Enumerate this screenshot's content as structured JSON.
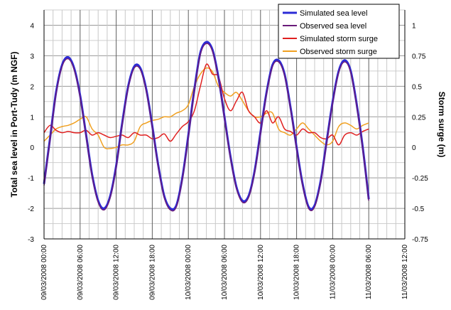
{
  "chart_data": {
    "type": "line",
    "ylabel_left": "Total sea level in Port-Tudy (m NGF)",
    "ylabel_right": "Storm surge (m)",
    "xlim_hours": [
      0,
      54
    ],
    "ylim_left": [
      -3,
      4.5
    ],
    "ylim_right": [
      -0.75,
      1.125
    ],
    "left_ticks": [
      "4",
      "3",
      "2",
      "1",
      "0",
      "-1",
      "-2",
      "-3"
    ],
    "right_ticks": [
      "1",
      "0.75",
      "0.5",
      "0.25",
      "0",
      "-0.25",
      "-0.5",
      "-0.75"
    ],
    "x_ticks": [
      {
        "hour": 0,
        "label": "09/03/2008 00:00"
      },
      {
        "hour": 6,
        "label": "09/03/2008 06:00"
      },
      {
        "hour": 12,
        "label": "09/03/2008 12:00"
      },
      {
        "hour": 18,
        "label": "09/03/2008 18:00"
      },
      {
        "hour": 24,
        "label": "10/03/2008 00:00"
      },
      {
        "hour": 30,
        "label": "10/03/2008 06:00"
      },
      {
        "hour": 36,
        "label": "10/03/2008 12:00"
      },
      {
        "hour": 42,
        "label": "10/03/2008 18:00"
      },
      {
        "hour": 48,
        "label": "11/03/2008 00:00"
      },
      {
        "hour": 54,
        "label": "11/03/2008 06:00"
      },
      {
        "hour": 60,
        "label": "11/03/2008 12:00"
      }
    ],
    "grid": true,
    "legend_position": "top-right",
    "series": [
      {
        "name": "Simulated sea level",
        "axis": "left",
        "color": "#2b2bd6",
        "width": 3,
        "x": [
          0,
          1,
          2,
          3,
          4,
          5,
          6,
          7,
          8,
          9,
          10,
          11,
          12,
          13,
          14,
          15,
          16,
          17,
          18,
          19,
          20,
          21,
          22,
          23,
          24,
          25,
          26,
          27,
          28,
          29,
          30,
          31,
          32,
          33,
          34,
          35,
          36,
          37,
          38,
          39,
          40,
          41,
          42,
          43,
          44,
          45,
          46,
          47,
          48,
          49,
          50,
          51,
          52,
          53,
          54
        ],
        "values": [
          -1.2,
          0.3,
          1.8,
          2.7,
          2.95,
          2.6,
          1.7,
          0.4,
          -0.9,
          -1.75,
          -2.0,
          -1.6,
          -0.6,
          0.8,
          2.0,
          2.65,
          2.6,
          1.9,
          0.7,
          -0.6,
          -1.6,
          -2.0,
          -1.9,
          -1.0,
          0.4,
          1.9,
          3.1,
          3.45,
          3.2,
          2.3,
          1.0,
          -0.3,
          -1.3,
          -1.75,
          -1.6,
          -0.8,
          0.5,
          1.8,
          2.7,
          2.85,
          2.4,
          1.3,
          0.0,
          -1.2,
          -1.95,
          -1.9,
          -1.1,
          0.2,
          1.5,
          2.5,
          2.85,
          2.5,
          1.4,
          0.0,
          -1.7
        ]
      },
      {
        "name": "Observed sea level",
        "axis": "left",
        "color": "#6a1b7a",
        "width": 1.5,
        "x": [
          0,
          1,
          2,
          3,
          4,
          5,
          6,
          7,
          8,
          9,
          10,
          11,
          12,
          13,
          14,
          15,
          16,
          17,
          18,
          19,
          20,
          21,
          22,
          23,
          24,
          25,
          26,
          27,
          28,
          29,
          30,
          31,
          32,
          33,
          34,
          35,
          36,
          37,
          38,
          39,
          40,
          41,
          42,
          43,
          44,
          45,
          46,
          47,
          48,
          49,
          50,
          51,
          52,
          53,
          54
        ],
        "values": [
          -1.25,
          0.25,
          1.75,
          2.65,
          2.9,
          2.55,
          1.65,
          0.35,
          -0.95,
          -1.8,
          -2.05,
          -1.65,
          -0.65,
          0.75,
          1.95,
          2.6,
          2.55,
          1.85,
          0.65,
          -0.65,
          -1.65,
          -2.05,
          -1.95,
          -1.05,
          0.35,
          1.85,
          3.05,
          3.4,
          3.15,
          2.25,
          0.95,
          -0.35,
          -1.35,
          -1.8,
          -1.65,
          -0.85,
          0.45,
          1.75,
          2.65,
          2.8,
          2.35,
          1.25,
          -0.05,
          -1.25,
          -2.0,
          -1.95,
          -1.15,
          0.15,
          1.45,
          2.45,
          2.8,
          2.45,
          1.35,
          -0.05,
          -1.75
        ]
      },
      {
        "name": "Simulated storm surge",
        "axis": "right",
        "color": "#e02020",
        "width": 1.5,
        "x": [
          0,
          1,
          2,
          3,
          4,
          5,
          6,
          7,
          8,
          9,
          10,
          11,
          12,
          13,
          14,
          15,
          16,
          17,
          18,
          19,
          20,
          21,
          22,
          23,
          24,
          25,
          26,
          27,
          28,
          29,
          30,
          31,
          32,
          33,
          34,
          35,
          36,
          37,
          38,
          39,
          40,
          41,
          42,
          43,
          44,
          45,
          46,
          47,
          48,
          49,
          50,
          51,
          52,
          53,
          54
        ],
        "values": [
          0.12,
          0.18,
          0.14,
          0.12,
          0.13,
          0.12,
          0.12,
          0.14,
          0.1,
          0.12,
          0.1,
          0.08,
          0.09,
          0.1,
          0.08,
          0.12,
          0.1,
          0.1,
          0.07,
          0.08,
          0.11,
          0.05,
          0.11,
          0.17,
          0.21,
          0.3,
          0.5,
          0.68,
          0.6,
          0.58,
          0.4,
          0.3,
          0.38,
          0.45,
          0.3,
          0.25,
          0.2,
          0.3,
          0.2,
          0.25,
          0.15,
          0.13,
          0.1,
          0.15,
          0.12,
          0.12,
          0.08,
          0.07,
          0.1,
          0.02,
          0.1,
          0.12,
          0.1,
          0.13,
          0.15
        ]
      },
      {
        "name": "Observed storm surge",
        "axis": "right",
        "color": "#f0a020",
        "width": 1.5,
        "x": [
          0,
          1,
          2,
          3,
          4,
          5,
          6,
          7,
          8,
          9,
          10,
          11,
          12,
          13,
          14,
          15,
          16,
          17,
          18,
          19,
          20,
          21,
          22,
          23,
          24,
          25,
          26,
          27,
          28,
          29,
          30,
          31,
          32,
          33,
          34,
          35,
          36,
          37,
          38,
          39,
          40,
          41,
          42,
          43,
          44,
          45,
          46,
          47,
          48,
          49,
          50,
          51,
          52,
          53,
          54
        ],
        "values": [
          0.05,
          0.1,
          0.15,
          0.17,
          0.18,
          0.2,
          0.23,
          0.25,
          0.15,
          0.1,
          0.0,
          -0.01,
          0.0,
          0.02,
          0.02,
          0.05,
          0.17,
          0.2,
          0.22,
          0.23,
          0.25,
          0.25,
          0.28,
          0.3,
          0.35,
          0.5,
          0.6,
          0.65,
          0.62,
          0.5,
          0.45,
          0.42,
          0.45,
          0.38,
          0.3,
          0.25,
          0.25,
          0.28,
          0.28,
          0.15,
          0.12,
          0.1,
          0.15,
          0.2,
          0.15,
          0.1,
          0.05,
          0.02,
          0.05,
          0.17,
          0.2,
          0.18,
          0.15,
          0.18,
          0.2
        ]
      }
    ]
  }
}
